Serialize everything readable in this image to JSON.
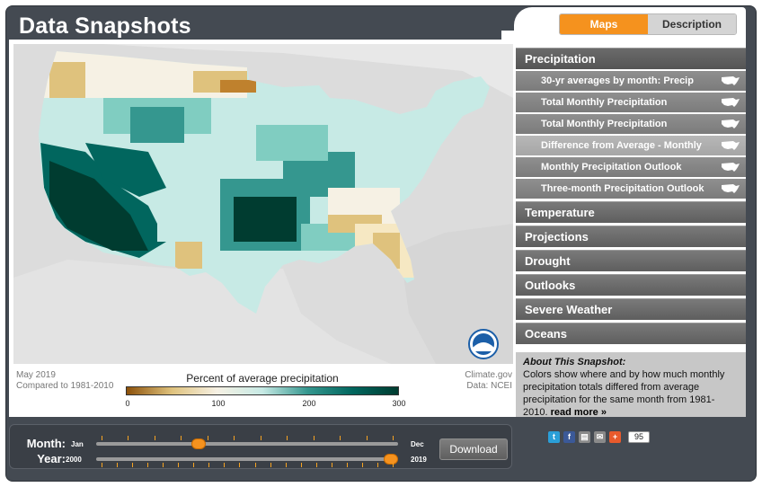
{
  "app": {
    "title": "Data Snapshots"
  },
  "tabs": [
    {
      "label": "Maps",
      "active": true
    },
    {
      "label": "Description",
      "active": false
    }
  ],
  "map": {
    "date": "May 2019",
    "compare": "Compared to 1981-2010",
    "source": "Climate.gov",
    "data_credit": "Data: NCEI",
    "logo": "NOAA",
    "legend": {
      "title": "Percent of average precipitation",
      "ticks": [
        "0",
        "100",
        "200",
        "300"
      ],
      "colors": [
        "#8c510a",
        "#dfc27d",
        "#f6f1e4",
        "#c7eae5",
        "#35978f",
        "#01665e",
        "#003c30"
      ]
    }
  },
  "sidebar": {
    "categories": [
      {
        "label": "Precipitation",
        "open": true,
        "items": [
          {
            "label": "30-yr averages by month: Precip",
            "selected": false
          },
          {
            "label": "Total Monthly Precipitation",
            "selected": false
          },
          {
            "label": "Total Monthly Precipitation",
            "selected": false
          },
          {
            "label": "Difference from Average - Monthly",
            "selected": true
          },
          {
            "label": "Monthly Precipitation Outlook",
            "selected": false
          },
          {
            "label": "Three-month Precipitation Outlook",
            "selected": false
          }
        ]
      },
      {
        "label": "Temperature"
      },
      {
        "label": "Projections"
      },
      {
        "label": "Drought"
      },
      {
        "label": "Outlooks"
      },
      {
        "label": "Severe Weather"
      },
      {
        "label": "Oceans"
      }
    ],
    "about": {
      "title": "About This Snapshot:",
      "text": "Colors show where and by how much monthly precipitation totals differed from average precipitation for the same month from 1981-2010.",
      "more": "read more »"
    }
  },
  "controls": {
    "month": {
      "label": "Month:",
      "start": "Jan",
      "end": "Dec",
      "value": 0.33
    },
    "year": {
      "label": "Year:",
      "start": "2000",
      "end": "2019",
      "value": 1.0
    },
    "download_label": "Download"
  },
  "share": {
    "count": "95",
    "icons": [
      "twitter-icon",
      "facebook-icon",
      "print-icon",
      "email-icon",
      "plus-icon"
    ]
  }
}
